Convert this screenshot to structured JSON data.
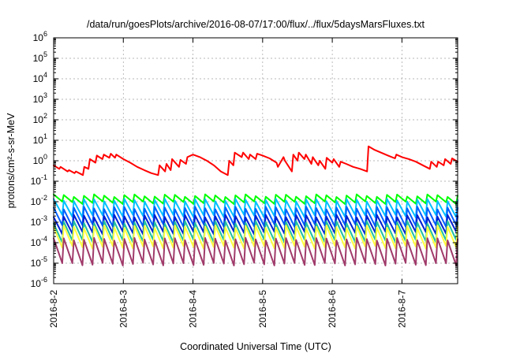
{
  "chart_data": {
    "type": "line",
    "title": "/data/run/goesPlots/archive/2016-08-07/17:00/flux/../flux/5daysMarsFluxes.txt",
    "xlabel": "Coordinated Universal Time (UTC)",
    "ylabel": "protons/cm²-s-sr-MeV",
    "y_scale": "log",
    "ylim": [
      1e-06,
      1000000.0
    ],
    "xlim": [
      0,
      5.8
    ],
    "x_ticks": [
      {
        "value": 0,
        "label": "2016-8-2"
      },
      {
        "value": 1,
        "label": "2016-8-3"
      },
      {
        "value": 2,
        "label": "2016-8-4"
      },
      {
        "value": 3,
        "label": "2016-8-5"
      },
      {
        "value": 4,
        "label": "2016-8-6"
      },
      {
        "value": 5,
        "label": "2016-8-7"
      }
    ],
    "y_ticks": [
      {
        "exp": -6,
        "label": "10-6"
      },
      {
        "exp": -5,
        "label": "10-5"
      },
      {
        "exp": -4,
        "label": "10-4"
      },
      {
        "exp": -3,
        "label": "10-3"
      },
      {
        "exp": -2,
        "label": "10-2"
      },
      {
        "exp": -1,
        "label": "10-1"
      },
      {
        "exp": 0,
        "label": "100"
      },
      {
        "exp": 1,
        "label": "101"
      },
      {
        "exp": 2,
        "label": "102"
      },
      {
        "exp": 3,
        "label": "103"
      },
      {
        "exp": 4,
        "label": "104"
      },
      {
        "exp": 5,
        "label": "105"
      },
      {
        "exp": 6,
        "label": "106"
      }
    ],
    "grid": true,
    "legend": "none",
    "series": [
      {
        "color": "#ff0000",
        "x": [
          0,
          0.08,
          0.1,
          0.2,
          0.22,
          0.3,
          0.32,
          0.42,
          0.44,
          0.5,
          0.52,
          0.6,
          0.62,
          0.7,
          0.72,
          0.8,
          0.82,
          0.88,
          0.9,
          1.0,
          1.1,
          1.2,
          1.3,
          1.4,
          1.5,
          1.52,
          1.6,
          1.62,
          1.68,
          1.7,
          1.8,
          1.82,
          1.9,
          1.92,
          2.0,
          2.1,
          2.2,
          2.3,
          2.4,
          2.5,
          2.52,
          2.58,
          2.6,
          2.7,
          2.72,
          2.8,
          2.82,
          2.9,
          2.92,
          3.0,
          3.1,
          3.2,
          3.22,
          3.3,
          3.32,
          3.42,
          3.44,
          3.5,
          3.52,
          3.6,
          3.62,
          3.7,
          3.72,
          3.8,
          3.82,
          3.9,
          3.92,
          4.0,
          4.02,
          4.1,
          4.12,
          4.2,
          4.3,
          4.4,
          4.5,
          4.52,
          4.6,
          4.7,
          4.8,
          4.9,
          4.92,
          5.0,
          5.1,
          5.2,
          5.3,
          5.4,
          5.42,
          5.5,
          5.52,
          5.6,
          5.62,
          5.7,
          5.72,
          5.8
        ],
        "y": [
          0.6,
          0.4,
          0.5,
          0.3,
          0.35,
          0.25,
          0.3,
          0.2,
          0.5,
          0.4,
          1.2,
          0.8,
          1.8,
          1.2,
          2.0,
          1.4,
          2.2,
          1.4,
          2.0,
          1.2,
          0.8,
          0.5,
          0.35,
          0.25,
          0.2,
          0.6,
          0.3,
          0.7,
          0.35,
          1.2,
          0.5,
          1.1,
          0.7,
          1.5,
          2.0,
          1.5,
          1.0,
          0.6,
          0.3,
          0.2,
          1.0,
          0.6,
          2.5,
          1.5,
          2.5,
          1.2,
          2.0,
          1.2,
          2.2,
          1.8,
          1.3,
          0.8,
          0.5,
          1.5,
          1.0,
          0.3,
          2.0,
          1.0,
          2.5,
          1.2,
          2.0,
          0.7,
          1.5,
          0.6,
          1.0,
          0.4,
          1.4,
          0.8,
          1.2,
          0.5,
          0.9,
          0.7,
          0.5,
          0.4,
          0.3,
          5.0,
          3.5,
          2.5,
          1.8,
          1.3,
          2.0,
          1.5,
          1.2,
          0.9,
          0.6,
          0.4,
          0.9,
          0.5,
          0.9,
          0.6,
          1.2,
          0.7,
          1.3,
          0.9
        ]
      },
      {
        "color": "#00ff00",
        "peak": 0.02,
        "trough": 0.009,
        "count": 40
      },
      {
        "color": "#00c0ff",
        "peak": 0.012,
        "trough": 0.002,
        "count": 40
      },
      {
        "color": "#0060ff",
        "peak": 0.005,
        "trough": 0.0007,
        "count": 40
      },
      {
        "color": "#0020d0",
        "peak": 0.002,
        "trough": 0.0003,
        "count": 40
      },
      {
        "color": "#20c0a0",
        "peak": 0.001,
        "trough": 0.00012,
        "count": 40
      },
      {
        "color": "#ffff40",
        "peak": 0.0006,
        "trough": 6e-05,
        "count": 40
      },
      {
        "color": "#a03a6a",
        "peak": 0.00015,
        "trough": 9e-06,
        "count": 40
      }
    ]
  }
}
